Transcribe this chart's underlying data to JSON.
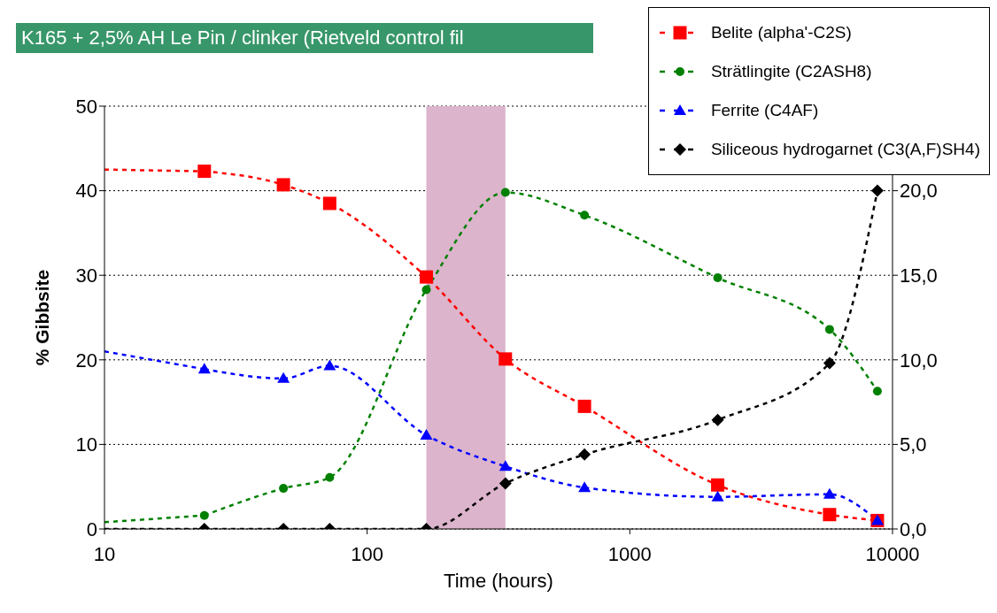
{
  "chart_data": {
    "type": "line",
    "title": "K165 + 2,5% AH Le Pin / clinker (Rietveld control fil",
    "xlabel": "Time (hours)",
    "ylabel": "% Gibbsite",
    "log": "x",
    "xlim": [
      10,
      10000
    ],
    "xticks": [
      10,
      100,
      1000,
      10000
    ],
    "ylim": [
      0,
      50
    ],
    "yticks": [
      0,
      10,
      20,
      30,
      40,
      50
    ],
    "y2lim": [
      0,
      25
    ],
    "y2ticks": [
      {
        "value": 0,
        "label": "0,0"
      },
      {
        "value": 5,
        "label": "5,0"
      },
      {
        "value": 10,
        "label": "10,0"
      },
      {
        "value": 15,
        "label": "15,0"
      },
      {
        "value": 20,
        "label": "20,0"
      }
    ],
    "grid": "y",
    "legend": "top right",
    "line_style": "dashed",
    "bands": [
      {
        "axis": "x",
        "from": 168,
        "to": 336,
        "color": "#dcb4cc"
      }
    ],
    "series": [
      {
        "name": "Belite (alpha'-C2S)",
        "color": "#ff0000",
        "marker": "square",
        "x": [
          24,
          48,
          72,
          168,
          336,
          672,
          2160,
          5760,
          8760
        ],
        "values": [
          42.3,
          40.7,
          38.5,
          29.8,
          20.1,
          14.5,
          5.2,
          1.7,
          1.0
        ]
      },
      {
        "name": "Strätlingite (C2ASH8)",
        "color": "#008000",
        "marker": "circle",
        "x": [
          24,
          48,
          72,
          168,
          336,
          672,
          2160,
          5760,
          8760
        ],
        "values": [
          1.6,
          4.8,
          6.1,
          28.3,
          39.8,
          37.1,
          29.7,
          23.6,
          16.3
        ]
      },
      {
        "name": "Ferrite (C4AF)",
        "color": "#0000ff",
        "marker": "triangle",
        "x": [
          24,
          48,
          72,
          168,
          336,
          672,
          2160,
          5760,
          8760
        ],
        "values": [
          18.9,
          17.8,
          19.3,
          11.1,
          7.4,
          4.9,
          3.8,
          4.1,
          1.0
        ]
      },
      {
        "name": "Siliceous hydrogarnet (C3(A,F)SH4)",
        "color": "#000000",
        "marker": "diamond",
        "axis": "y2",
        "x": [
          24,
          48,
          72,
          168,
          336,
          672,
          2160,
          5760,
          8760
        ],
        "values": [
          0,
          0,
          0,
          0,
          2.7,
          4.4,
          6.45,
          9.8,
          20.0
        ]
      },
      {
        "color": "#ff0000",
        "marker": "none",
        "x": [
          10,
          24
        ],
        "values": [
          42.5,
          42.3
        ]
      },
      {
        "color": "#008000",
        "marker": "none",
        "x": [
          10,
          24
        ],
        "values": [
          0.8,
          1.6
        ]
      },
      {
        "color": "#0000ff",
        "marker": "none",
        "x": [
          10,
          24
        ],
        "values": [
          21,
          18.9
        ]
      },
      {
        "color": "#000000",
        "marker": "none",
        "axis": "y2",
        "x": [
          10,
          24
        ],
        "values": [
          0,
          0
        ]
      }
    ]
  }
}
